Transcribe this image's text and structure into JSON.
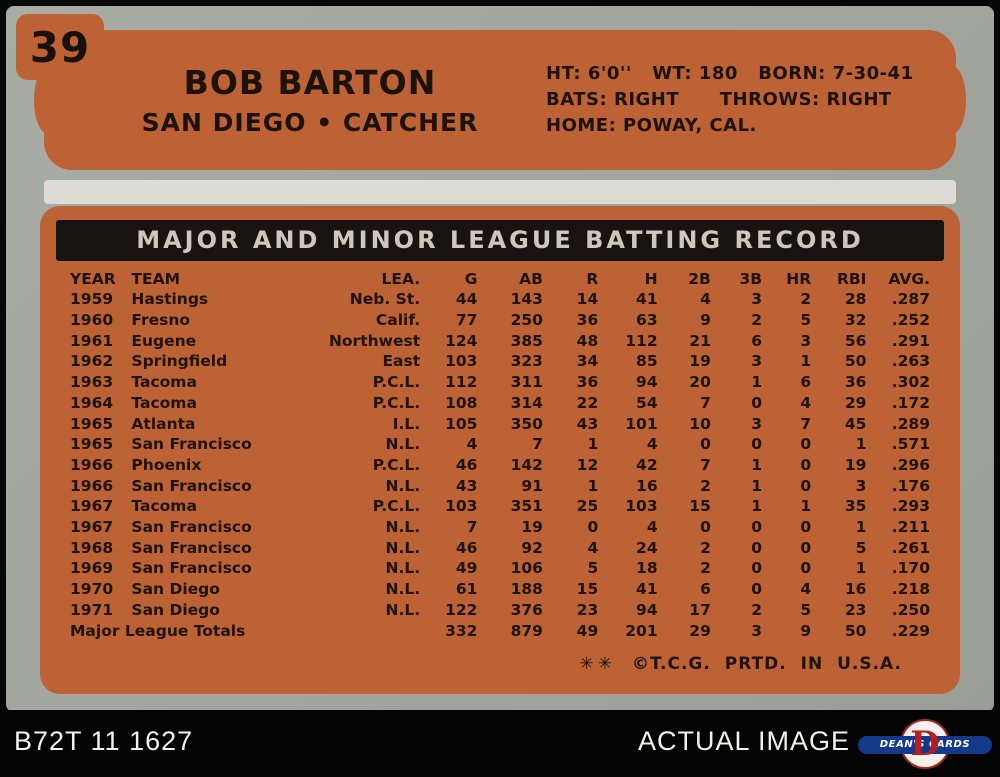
{
  "card": {
    "number": "39",
    "player_name": "BOB BARTON",
    "team_position": "SAN DIEGO  •  CATCHER",
    "bio_line1": "HT: 6'0''   WT: 180   BORN: 7-30-41",
    "bio_line2": "BATS: RIGHT      THROWS: RIGHT",
    "bio_line3": "HOME: POWAY, CAL.",
    "table_title": "MAJOR AND MINOR LEAGUE BATTING RECORD",
    "copyright_symbols": "✳✳",
    "copyright_text": "©T.C.G. PRTD. IN U.S.A.",
    "accent_orange": "#bd6234",
    "ink_color": "#1e140b",
    "stock_gray": "#a5a7a1"
  },
  "table": {
    "headers": [
      "YEAR",
      "TEAM",
      "LEA.",
      "G",
      "AB",
      "R",
      "H",
      "2B",
      "3B",
      "HR",
      "RBI",
      "AVG."
    ],
    "rows": [
      [
        "1959",
        "Hastings",
        "Neb. St.",
        "44",
        "143",
        "14",
        "41",
        "4",
        "3",
        "2",
        "28",
        ".287"
      ],
      [
        "1960",
        "Fresno",
        "Calif.",
        "77",
        "250",
        "36",
        "63",
        "9",
        "2",
        "5",
        "32",
        ".252"
      ],
      [
        "1961",
        "Eugene",
        "Northwest",
        "124",
        "385",
        "48",
        "112",
        "21",
        "6",
        "3",
        "56",
        ".291"
      ],
      [
        "1962",
        "Springfield",
        "East",
        "103",
        "323",
        "34",
        "85",
        "19",
        "3",
        "1",
        "50",
        ".263"
      ],
      [
        "1963",
        "Tacoma",
        "P.C.L.",
        "112",
        "311",
        "36",
        "94",
        "20",
        "1",
        "6",
        "36",
        ".302"
      ],
      [
        "1964",
        "Tacoma",
        "P.C.L.",
        "108",
        "314",
        "22",
        "54",
        "7",
        "0",
        "4",
        "29",
        ".172"
      ],
      [
        "1965",
        "Atlanta",
        "I.L.",
        "105",
        "350",
        "43",
        "101",
        "10",
        "3",
        "7",
        "45",
        ".289"
      ],
      [
        "1965",
        "San Francisco",
        "N.L.",
        "4",
        "7",
        "1",
        "4",
        "0",
        "0",
        "0",
        "1",
        ".571"
      ],
      [
        "1966",
        "Phoenix",
        "P.C.L.",
        "46",
        "142",
        "12",
        "42",
        "7",
        "1",
        "0",
        "19",
        ".296"
      ],
      [
        "1966",
        "San Francisco",
        "N.L.",
        "43",
        "91",
        "1",
        "16",
        "2",
        "1",
        "0",
        "3",
        ".176"
      ],
      [
        "1967",
        "Tacoma",
        "P.C.L.",
        "103",
        "351",
        "25",
        "103",
        "15",
        "1",
        "1",
        "35",
        ".293"
      ],
      [
        "1967",
        "San Francisco",
        "N.L.",
        "7",
        "19",
        "0",
        "4",
        "0",
        "0",
        "0",
        "1",
        ".211"
      ],
      [
        "1968",
        "San Francisco",
        "N.L.",
        "46",
        "92",
        "4",
        "24",
        "2",
        "0",
        "0",
        "5",
        ".261"
      ],
      [
        "1969",
        "San Francisco",
        "N.L.",
        "49",
        "106",
        "5",
        "18",
        "2",
        "0",
        "0",
        "1",
        ".170"
      ],
      [
        "1970",
        "San Diego",
        "N.L.",
        "61",
        "188",
        "15",
        "41",
        "6",
        "0",
        "4",
        "16",
        ".218"
      ],
      [
        "1971",
        "San Diego",
        "N.L.",
        "122",
        "376",
        "23",
        "94",
        "17",
        "2",
        "5",
        "23",
        ".250"
      ]
    ],
    "totals": {
      "label": "Major League Totals",
      "values": [
        "332",
        "879",
        "49",
        "201",
        "29",
        "3",
        "9",
        "50",
        ".229"
      ]
    }
  },
  "footer": {
    "left_code": "B72T 11 1627",
    "right_label": "ACTUAL IMAGE",
    "logo_text": "DEAN'S CARDS",
    "logo_letter": "D"
  }
}
